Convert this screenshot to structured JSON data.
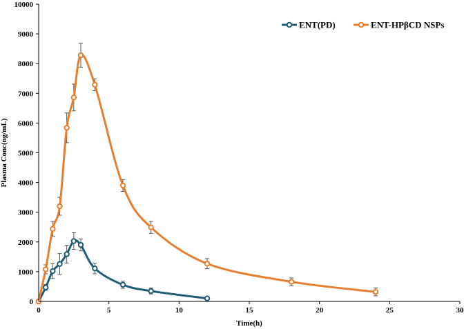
{
  "chart_data": {
    "type": "line",
    "title": "",
    "xlabel": "Time(h)",
    "ylabel": "Plasma Conc(ng/mL)",
    "xlim": [
      0,
      30
    ],
    "ylim": [
      0,
      10000
    ],
    "xticks": [
      0,
      5,
      10,
      15,
      20,
      25,
      30
    ],
    "yticks": [
      0,
      1000,
      2000,
      3000,
      4000,
      5000,
      6000,
      7000,
      8000,
      9000,
      10000
    ],
    "grid": false,
    "legend_position": "top-right",
    "series": [
      {
        "name": "ENT(PD)",
        "color": "#1f5c73",
        "x": [
          0,
          0.5,
          1,
          1.5,
          2,
          2.5,
          3,
          4,
          6,
          8,
          12
        ],
        "y": [
          0,
          470,
          1020,
          1260,
          1590,
          2030,
          1900,
          1110,
          560,
          350,
          100
        ],
        "error": [
          0,
          100,
          250,
          350,
          300,
          280,
          200,
          180,
          120,
          100,
          0
        ]
      },
      {
        "name": "ENT-HPβCD NSPs",
        "color": "#e67e30",
        "x": [
          0,
          0.5,
          1,
          1.5,
          2,
          2.5,
          3,
          4,
          6,
          8,
          12,
          18,
          24
        ],
        "y": [
          0,
          1080,
          2440,
          3200,
          5840,
          6860,
          8280,
          7290,
          3900,
          2490,
          1270,
          660,
          320
        ],
        "error": [
          0,
          150,
          250,
          300,
          500,
          450,
          400,
          200,
          200,
          200,
          170,
          130,
          130
        ]
      }
    ]
  }
}
